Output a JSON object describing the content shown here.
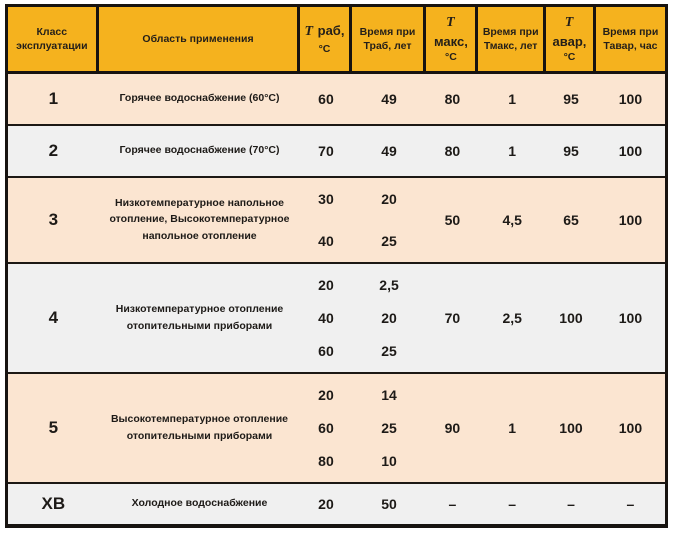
{
  "colors": {
    "header_bg": "#F5B21E",
    "row_peach": "#FBE5D1",
    "row_gray": "#F0F0F0",
    "border": "#171310",
    "text": "#1d1a17"
  },
  "table": {
    "headers": [
      {
        "lines": [
          "Класс",
          "эксплуатации"
        ],
        "italic_T": false
      },
      {
        "lines": [
          "Область применения"
        ],
        "italic_T": false
      },
      {
        "lines": [
          "T раб,",
          "°C"
        ],
        "italic_T": true
      },
      {
        "lines": [
          "Время при",
          "Траб, лет"
        ],
        "italic_T": false
      },
      {
        "lines": [
          "T макс,",
          "°C"
        ],
        "italic_T": true
      },
      {
        "lines": [
          "Время при",
          "Тмакс, лет"
        ],
        "italic_T": false
      },
      {
        "lines": [
          "T авар,",
          "°C"
        ],
        "italic_T": true
      },
      {
        "lines": [
          "Время при",
          "Тавар, час"
        ],
        "italic_T": false
      }
    ],
    "rows": [
      {
        "class": "1",
        "area": "Горячее водоснабжение (60°C)",
        "t_rab": [
          "60"
        ],
        "time_rab": [
          "49"
        ],
        "t_max": "80",
        "time_max": "1",
        "t_avar": "95",
        "time_avar": "100",
        "shade": "peach"
      },
      {
        "class": "2",
        "area": "Горячее водоснабжение (70°C)",
        "t_rab": [
          "70"
        ],
        "time_rab": [
          "49"
        ],
        "t_max": "80",
        "time_max": "1",
        "t_avar": "95",
        "time_avar": "100",
        "shade": "gray"
      },
      {
        "class": "3",
        "area": "Низкотемпературное напольное отопление, Высокотемпературное напольное отопление",
        "t_rab": [
          "30",
          "40"
        ],
        "time_rab": [
          "20",
          "25"
        ],
        "t_max": "50",
        "time_max": "4,5",
        "t_avar": "65",
        "time_avar": "100",
        "shade": "peach"
      },
      {
        "class": "4",
        "area": "Низкотемпературное отопление отопительными приборами",
        "t_rab": [
          "20",
          "40",
          "60"
        ],
        "time_rab": [
          "2,5",
          "20",
          "25"
        ],
        "t_max": "70",
        "time_max": "2,5",
        "t_avar": "100",
        "time_avar": "100",
        "shade": "gray"
      },
      {
        "class": "5",
        "area": "Высокотемпературное отопление отопительными приборами",
        "t_rab": [
          "20",
          "60",
          "80"
        ],
        "time_rab": [
          "14",
          "25",
          "10"
        ],
        "t_max": "90",
        "time_max": "1",
        "t_avar": "100",
        "time_avar": "100",
        "shade": "peach"
      },
      {
        "class": "ХВ",
        "area": "Холодное водоснабжение",
        "t_rab": [
          "20"
        ],
        "time_rab": [
          "50"
        ],
        "t_max": "–",
        "time_max": "–",
        "t_avar": "–",
        "time_avar": "–",
        "shade": "gray"
      }
    ]
  }
}
